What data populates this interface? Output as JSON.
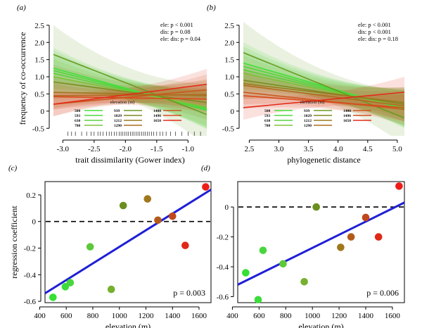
{
  "chart_data": [
    {
      "type": "line",
      "panel_label": "(a)",
      "xlabel": "trait dissimilarity (Gower index)",
      "ylabel": "frequency of co-occurrence",
      "xlim": [
        -3.15,
        -0.7
      ],
      "ylim": [
        -0.72,
        2.62
      ],
      "xticks": [
        "-3.0",
        "-2.5",
        "-2.0",
        "-1.5",
        "-1.0"
      ],
      "xtick_values": [
        -3.0,
        -2.5,
        -2.0,
        -1.5,
        -1.0
      ],
      "yticks": [
        "-0.5",
        "0",
        "0.5",
        "1.0",
        "1.5",
        "2.0",
        "2.5"
      ],
      "ytick_values": [
        -0.5,
        0,
        0.5,
        1.0,
        1.5,
        2.0,
        2.5
      ],
      "stats": [
        "ele: p < 0.001",
        "dis: p = 0.08",
        "ele: dis: p = 0.04"
      ],
      "legend_title": "elevation (m)",
      "series": [
        {
          "name": "500",
          "color": "#44e03a",
          "y_start": 1.25,
          "y_end": 0.02,
          "band_start": 0.6,
          "band_end": 0.55
        },
        {
          "name": "593",
          "color": "#4ed83e",
          "y_start": 1.18,
          "y_end": 0.05,
          "band_start": 0.58,
          "band_end": 0.55
        },
        {
          "name": "630",
          "color": "#5ad040",
          "y_start": 1.1,
          "y_end": 0.08,
          "band_start": 0.56,
          "band_end": 0.55
        },
        {
          "name": "780",
          "color": "#7ec23a",
          "y_start": 1.0,
          "y_end": 0.12,
          "band_start": 0.52,
          "band_end": 0.55
        },
        {
          "name": "939",
          "color": "#6a9a20",
          "y_start": 1.65,
          "y_end": -0.1,
          "band_start": 0.85,
          "band_end": 0.9
        },
        {
          "name": "1029",
          "color": "#7f8a20",
          "y_start": 0.85,
          "y_end": 0.25,
          "band_start": 0.5,
          "band_end": 0.5
        },
        {
          "name": "1212",
          "color": "#9a7a20",
          "y_start": 0.55,
          "y_end": 0.45,
          "band_start": 0.45,
          "band_end": 0.45
        },
        {
          "name": "1290",
          "color": "#b06a20",
          "y_start": 0.45,
          "y_end": 0.48,
          "band_start": 0.4,
          "band_end": 0.45
        },
        {
          "name": "1400",
          "color": "#c8581c",
          "y_start": 0.2,
          "y_end": 0.62,
          "band_start": 0.35,
          "band_end": 0.45
        },
        {
          "name": "1496",
          "color": "#d84a1a",
          "y_start": 0.42,
          "y_end": 0.35,
          "band_start": 0.38,
          "band_end": 0.4
        },
        {
          "name": "1650",
          "color": "#e32a18",
          "y_start": 0.2,
          "y_end": 0.78,
          "band_start": 0.35,
          "band_end": 0.45
        }
      ],
      "rug": [
        -2.92,
        -2.86,
        -2.8,
        -2.7,
        -2.62,
        -2.55,
        -2.5,
        -2.44,
        -2.4,
        -2.36,
        -2.3,
        -2.26,
        -2.22,
        -2.18,
        -2.14,
        -2.1,
        -2.07,
        -2.04,
        -2.01,
        -1.98,
        -1.95,
        -1.92,
        -1.89,
        -1.86,
        -1.83,
        -1.8,
        -1.77,
        -1.74,
        -1.71,
        -1.68,
        -1.65,
        -1.62,
        -1.58,
        -1.55,
        -1.5,
        -1.45,
        -1.4,
        -1.35,
        -1.28,
        -1.2,
        -1.1,
        -1.0,
        -0.9,
        -0.8
      ]
    },
    {
      "type": "line",
      "panel_label": "(b)",
      "xlabel": "phylogenetic distance",
      "ylabel": "",
      "xlim": [
        2.4,
        5.12
      ],
      "ylim": [
        -0.72,
        2.62
      ],
      "xticks": [
        "2.5",
        "3.0",
        "3.5",
        "4.0",
        "4.5",
        "5.0"
      ],
      "xtick_values": [
        2.5,
        3.0,
        3.5,
        4.0,
        4.5,
        5.0
      ],
      "yticks": [
        "-0.5",
        "0",
        "0.5",
        "1.0",
        "1.5",
        "2.0",
        "2.5"
      ],
      "ytick_values": [
        -0.5,
        0,
        0.5,
        1.0,
        1.5,
        2.0,
        2.5
      ],
      "stats": [
        "ele: p < 0.001",
        "dis: p < 0.001",
        "ele: dis: p = 0.18"
      ],
      "legend_title": "elevation (m)",
      "series": [
        {
          "name": "500",
          "color": "#44e03a",
          "y_start": 1.4,
          "y_end": 0.05,
          "band_start": 0.6,
          "band_end": 0.55
        },
        {
          "name": "593",
          "color": "#4ed83e",
          "y_start": 1.3,
          "y_end": 0.08,
          "band_start": 0.58,
          "band_end": 0.55
        },
        {
          "name": "630",
          "color": "#5ad040",
          "y_start": 1.2,
          "y_end": 0.1,
          "band_start": 0.56,
          "band_end": 0.55
        },
        {
          "name": "780",
          "color": "#7ec23a",
          "y_start": 1.1,
          "y_end": 0.12,
          "band_start": 0.52,
          "band_end": 0.55
        },
        {
          "name": "939",
          "color": "#6a9a20",
          "y_start": 1.7,
          "y_end": -0.2,
          "band_start": 0.9,
          "band_end": 0.8
        },
        {
          "name": "1029",
          "color": "#7f8a20",
          "y_start": 0.9,
          "y_end": 0.2,
          "band_start": 0.5,
          "band_end": 0.5
        },
        {
          "name": "1212",
          "color": "#9a7a20",
          "y_start": 0.8,
          "y_end": 0.25,
          "band_start": 0.45,
          "band_end": 0.45
        },
        {
          "name": "1290",
          "color": "#b06a20",
          "y_start": 0.75,
          "y_end": 0.15,
          "band_start": 0.4,
          "band_end": 0.45
        },
        {
          "name": "1400",
          "color": "#c8581c",
          "y_start": 0.55,
          "y_end": 0.05,
          "band_start": 0.35,
          "band_end": 0.45
        },
        {
          "name": "1496",
          "color": "#d84a1a",
          "y_start": 0.45,
          "y_end": 0.1,
          "band_start": 0.38,
          "band_end": 0.4
        },
        {
          "name": "1650",
          "color": "#e32a18",
          "y_start": 0.1,
          "y_end": 0.55,
          "band_start": 0.35,
          "band_end": 0.45
        }
      ]
    },
    {
      "type": "scatter",
      "panel_label": "(c)",
      "xlabel": "elevation (m)",
      "ylabel": "regression coefficient",
      "xlim": [
        440,
        1690
      ],
      "ylim": [
        -0.61,
        0.3
      ],
      "xticks": [
        "400",
        "600",
        "800",
        "1000",
        "1200",
        "1400",
        "1600"
      ],
      "xtick_values": [
        400,
        600,
        800,
        1000,
        1200,
        1400,
        1600
      ],
      "yticks": [
        "-0.6",
        "-0.4",
        "-0.2",
        "0",
        "0.2"
      ],
      "ytick_values": [
        -0.6,
        -0.4,
        -0.2,
        0,
        0.2
      ],
      "stat": "p = 0.003",
      "fit": {
        "x": [
          440,
          1690
        ],
        "y": [
          -0.54,
          0.24
        ],
        "color": "#1f1fd6"
      },
      "reference_y": 0,
      "points": [
        {
          "x": 500,
          "y": -0.57,
          "color": "#33e033"
        },
        {
          "x": 593,
          "y": -0.49,
          "color": "#3cdc3a"
        },
        {
          "x": 630,
          "y": -0.46,
          "color": "#48d63e"
        },
        {
          "x": 780,
          "y": -0.19,
          "color": "#5cc83a"
        },
        {
          "x": 939,
          "y": -0.51,
          "color": "#76b02e"
        },
        {
          "x": 1029,
          "y": 0.12,
          "color": "#6b8f1f"
        },
        {
          "x": 1212,
          "y": 0.17,
          "color": "#a0781c"
        },
        {
          "x": 1290,
          "y": 0.01,
          "color": "#b35a1a"
        },
        {
          "x": 1400,
          "y": 0.04,
          "color": "#c0481a"
        },
        {
          "x": 1496,
          "y": -0.18,
          "color": "#e02818"
        },
        {
          "x": 1650,
          "y": 0.26,
          "color": "#ee1c18"
        }
      ]
    },
    {
      "type": "scatter",
      "panel_label": "(d)",
      "xlabel": "elevation (m)",
      "ylabel": "",
      "xlim": [
        440,
        1690
      ],
      "ylim": [
        -0.64,
        0.17
      ],
      "xticks": [
        "400",
        "600",
        "800",
        "1000",
        "1200",
        "1400",
        "1600"
      ],
      "xtick_values": [
        400,
        600,
        800,
        1000,
        1200,
        1400,
        1600
      ],
      "yticks": [
        "-0.6",
        "-0.4",
        "-0.2",
        "0"
      ],
      "ytick_values": [
        -0.6,
        -0.4,
        -0.2,
        0
      ],
      "stat": "p = 0.006",
      "fit": {
        "x": [
          440,
          1690
        ],
        "y": [
          -0.52,
          0.03
        ],
        "color": "#1f1fd6"
      },
      "reference_y": 0,
      "points": [
        {
          "x": 500,
          "y": -0.44,
          "color": "#33e033"
        },
        {
          "x": 593,
          "y": -0.62,
          "color": "#3cdc3a"
        },
        {
          "x": 630,
          "y": -0.29,
          "color": "#48d63e"
        },
        {
          "x": 780,
          "y": -0.38,
          "color": "#5cc83a"
        },
        {
          "x": 939,
          "y": -0.5,
          "color": "#76b02e"
        },
        {
          "x": 1029,
          "y": 0.0,
          "color": "#6b8f1f"
        },
        {
          "x": 1212,
          "y": -0.27,
          "color": "#a0781c"
        },
        {
          "x": 1290,
          "y": -0.2,
          "color": "#b35a1a"
        },
        {
          "x": 1400,
          "y": -0.07,
          "color": "#c0481a"
        },
        {
          "x": 1496,
          "y": -0.2,
          "color": "#e02818"
        },
        {
          "x": 1650,
          "y": 0.14,
          "color": "#ee1c18"
        }
      ]
    }
  ]
}
